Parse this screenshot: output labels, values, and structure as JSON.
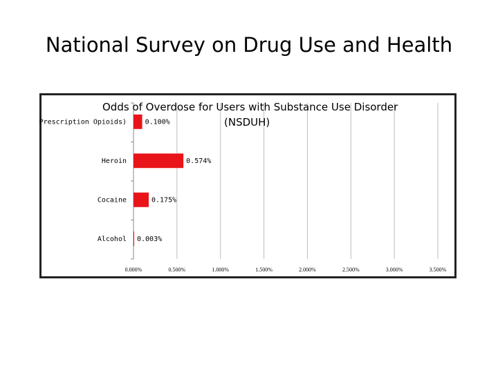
{
  "slide": {
    "title": "National Survey on Drug Use and Health"
  },
  "chart_data": {
    "type": "bar",
    "orientation": "horizontal",
    "title": "Odds of Overdose for Users with Substance Use Disorder (NSDUH)",
    "title_line1": "Odds of Overdose for Users with Substance Use Disorder",
    "title_line2": "(NSDUH)",
    "categories": [
      "(Prescription Opioids)",
      "Heroin",
      "Cocaine",
      "Alcohol"
    ],
    "values": [
      0.1,
      0.574,
      0.175,
      0.003
    ],
    "data_labels": [
      "0.100%",
      "0.574%",
      "0.175%",
      "0.003%"
    ],
    "xlim": [
      0,
      3.5
    ],
    "xticks": [
      0,
      0.5,
      1.0,
      1.5,
      2.0,
      2.5,
      3.0,
      3.5
    ],
    "xtick_labels": [
      "0.000%",
      "0.500%",
      "1.000%",
      "1.500%",
      "2.000%",
      "2.500%",
      "3.000%",
      "3.500%"
    ],
    "grid": true,
    "bar_color": "#e8141a",
    "legend": false
  }
}
